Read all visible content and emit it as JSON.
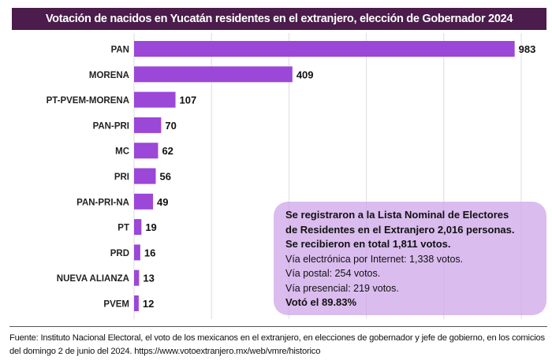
{
  "chart_data": {
    "type": "bar",
    "orientation": "horizontal",
    "title": "Votación de nacidos en Yucatán residentes en el extranjero, elección de Gobernador 2024",
    "categories": [
      "PAN",
      "MORENA",
      "PT-PVEM-MORENA",
      "PAN-PRI",
      "MC",
      "PRI",
      "PAN-PRI-NA",
      "PT",
      "PRD",
      "NUEVA ALIANZA",
      "PVEM"
    ],
    "values": [
      983,
      409,
      107,
      70,
      62,
      56,
      49,
      19,
      16,
      13,
      12
    ],
    "xlim": [
      0,
      1000
    ],
    "grid": true,
    "bar_color": "#9b47d8"
  },
  "info": {
    "lines_bold": [
      "Se registraron a la Lista Nominal de Electores",
      "de Residentes en el Extranjero 2,016 personas.",
      "Se recibieron en total 1,811 votos."
    ],
    "lines": [
      "Vía electrónica por Internet: 1,338 votos.",
      "Vía postal: 254 votos.",
      "Vía presencial: 219 votos."
    ],
    "final": "Votó el 89.83%"
  },
  "source": "Fuente: Instituto Nacional Electoral, el voto de los mexicanos en el extranjero, en elecciones de gobernador y jefe de gobierno, en los comicios del domingo 2 de junio del 2024. https://www.votoextranjero.mx/web/vmre/historico"
}
